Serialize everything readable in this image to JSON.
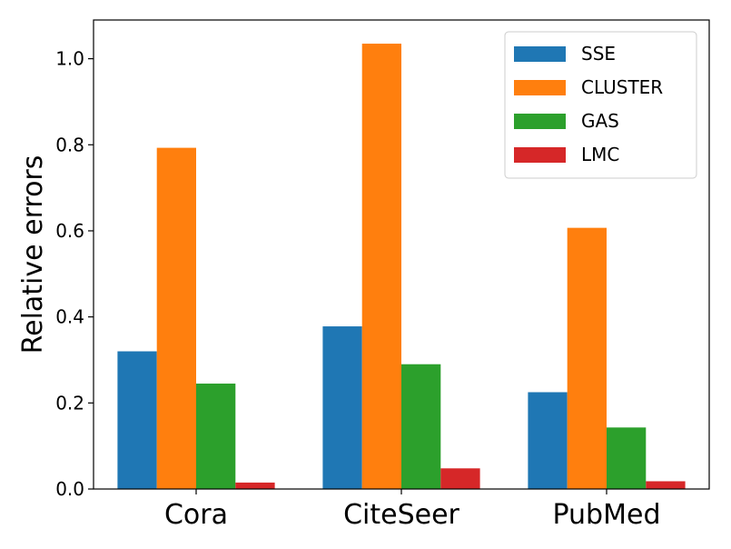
{
  "chart_data": {
    "type": "bar",
    "title": "",
    "xlabel": "",
    "ylabel": "Relative errors",
    "categories": [
      "Cora",
      "CiteSeer",
      "PubMed"
    ],
    "ylim": [
      0.0,
      1.09
    ],
    "yticks": [
      "0.0",
      "0.2",
      "0.4",
      "0.6",
      "0.8",
      "1.0"
    ],
    "ytick_values": [
      0.0,
      0.2,
      0.4,
      0.6,
      0.8,
      1.0
    ],
    "grid": false,
    "legend_position": "top-right",
    "series": [
      {
        "name": "SSE",
        "color": "#1f77b4",
        "values": [
          0.32,
          0.378,
          0.225
        ]
      },
      {
        "name": "CLUSTER",
        "color": "#ff7f0e",
        "values": [
          0.793,
          1.035,
          0.607
        ]
      },
      {
        "name": "GAS",
        "color": "#2ca02c",
        "values": [
          0.245,
          0.29,
          0.143
        ]
      },
      {
        "name": "LMC",
        "color": "#d62728",
        "values": [
          0.015,
          0.048,
          0.018
        ]
      }
    ]
  }
}
